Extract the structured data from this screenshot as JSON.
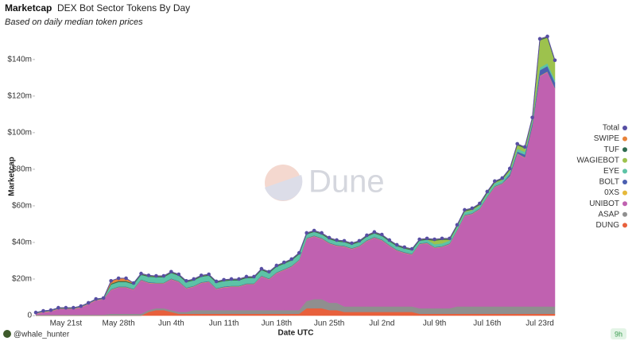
{
  "header": {
    "title": "Marketcap",
    "subtitle": "DEX Bot Sector Tokens By Day",
    "note": "Based on daily median token prices"
  },
  "watermark": "Dune",
  "footer": {
    "user": "@whale_hunter",
    "age": "9h"
  },
  "chart_data": {
    "type": "stacked-area",
    "x_label": "Date UTC",
    "y_label": "Marketcap",
    "categories": [
      null,
      null,
      null,
      null,
      "May 21st",
      null,
      null,
      null,
      null,
      null,
      null,
      "May 28th",
      null,
      null,
      null,
      null,
      null,
      null,
      "Jun 4th",
      null,
      null,
      null,
      null,
      null,
      null,
      "Jun 11th",
      null,
      null,
      null,
      null,
      null,
      null,
      "Jun 18th",
      null,
      null,
      null,
      null,
      null,
      null,
      "Jun 25th",
      null,
      null,
      null,
      null,
      null,
      null,
      "Jul 2nd",
      null,
      null,
      null,
      null,
      null,
      null,
      "Jul 9th",
      null,
      null,
      null,
      null,
      null,
      null,
      "Jul 16th",
      null,
      null,
      null,
      null,
      null,
      null,
      "Jul 23rd",
      null,
      null
    ],
    "ylim": [
      0,
      156
    ],
    "yticks": [
      0,
      {
        "value": 20,
        "label": "$20m"
      },
      {
        "value": 40,
        "label": "$40m"
      },
      {
        "value": 60,
        "label": "$60m"
      },
      {
        "value": 80,
        "label": "$80m"
      },
      {
        "value": 100,
        "label": "$100m"
      },
      {
        "value": 120,
        "label": "$120m"
      },
      {
        "value": 140,
        "label": "$140m"
      }
    ],
    "legend": "right",
    "series": [
      {
        "name": "Total",
        "color": "#574ea3",
        "kind": "line",
        "values": [
          1.7,
          2.6,
          3,
          4.3,
          4.3,
          4.3,
          5.2,
          7,
          9.1,
          9.6,
          19,
          20.4,
          20.4,
          17.8,
          23,
          22,
          21.7,
          21.7,
          24,
          22.6,
          19,
          20,
          22,
          22.6,
          18.7,
          19.6,
          20,
          20,
          21.3,
          21.3,
          25.6,
          24,
          27.4,
          29.1,
          30.9,
          34.3,
          45.2,
          46.5,
          45.2,
          42.6,
          41.3,
          40.9,
          39.6,
          40.9,
          43.9,
          45.7,
          44.3,
          41.3,
          38.7,
          37.4,
          36.5,
          41.7,
          42.2,
          41.7,
          42.2,
          42.2,
          49.6,
          57.8,
          58.7,
          61.3,
          67.8,
          73.5,
          75.2,
          80.4,
          93.9,
          92.2,
          108.3,
          151.3,
          152.6,
          139.6
        ]
      },
      {
        "name": "SWIPE",
        "color": "#e8833a",
        "values": [
          0,
          0,
          0,
          0,
          0,
          0,
          0,
          0,
          0,
          0,
          1.5,
          1.5,
          1.5,
          0.2,
          0.2,
          0.2,
          0.2,
          0.2,
          0.2,
          0.2,
          0.2,
          0.2,
          0.2,
          0.2,
          0.2,
          0.2,
          0.2,
          0.2,
          0.2,
          0.2,
          0.2,
          0.2,
          0.2,
          0.2,
          0.2,
          0.2,
          0.2,
          0.2,
          0.2,
          0.2,
          0.2,
          0.2,
          0.2,
          0.2,
          0.2,
          0.2,
          0.2,
          0.2,
          0.2,
          0.2,
          0.2,
          0.2,
          0.2,
          0.2,
          0.2,
          0.2,
          0.2,
          0.2,
          0.2,
          0.2,
          0.2,
          0.2,
          0.2,
          0.2,
          0.2,
          0.2,
          0.2,
          0.2,
          0.2,
          0.2
        ]
      },
      {
        "name": "TUF",
        "color": "#2e6b4f",
        "values": [
          0.2,
          0.2,
          0.2,
          0.2,
          0.2,
          0.2,
          0.2,
          0.2,
          0.2,
          0.2,
          0.5,
          0.5,
          0.5,
          0.5,
          0.5,
          0.5,
          0.5,
          0.5,
          0.5,
          0.5,
          0.5,
          0.5,
          0.5,
          0.5,
          0.5,
          0.5,
          0.5,
          0.5,
          0.5,
          0.5,
          0.5,
          0.5,
          0.5,
          0.5,
          0.5,
          0.5,
          0.5,
          0.5,
          0.5,
          0.5,
          0.5,
          0.5,
          0.5,
          0.5,
          0.5,
          0.5,
          0.5,
          0.5,
          0.5,
          0.5,
          0.5,
          0.5,
          0.5,
          0.5,
          0.5,
          0.5,
          0.5,
          0.5,
          0.5,
          0.5,
          0.5,
          0.5,
          0.5,
          0.5,
          0.5,
          0.5,
          0.5,
          0.5,
          0.5,
          0.5
        ]
      },
      {
        "name": "WAGIEBOT",
        "color": "#9dc24d",
        "values": [
          0,
          0,
          0,
          0,
          0,
          0,
          0,
          0,
          0,
          0,
          0,
          0,
          0,
          0,
          0,
          0,
          0,
          0,
          0,
          0,
          0,
          0,
          0,
          0,
          0,
          0,
          0,
          0,
          0,
          0,
          0,
          0,
          0,
          0,
          0,
          0,
          0,
          0,
          0,
          0,
          0,
          0,
          0,
          0,
          0,
          0,
          0,
          0,
          0,
          0,
          0,
          0,
          0,
          2,
          2,
          0.5,
          0.5,
          0.5,
          0.5,
          0.5,
          0.5,
          0.5,
          0.5,
          1,
          2,
          2,
          1,
          15,
          14,
          10
        ]
      },
      {
        "name": "EYE",
        "color": "#5cc3a6",
        "values": [
          0,
          0,
          0,
          0,
          0,
          0,
          0,
          0,
          0,
          0,
          2.5,
          2.5,
          2.5,
          2.5,
          2.5,
          3,
          3,
          3,
          3,
          3,
          3,
          3,
          3,
          3,
          3,
          3,
          3,
          3,
          3,
          3,
          3,
          3,
          3,
          3,
          3,
          3,
          2,
          2,
          2,
          2,
          2,
          2,
          2,
          2,
          2,
          2,
          2,
          2,
          2,
          2,
          2,
          1.5,
          1.5,
          1.5,
          1.5,
          1.5,
          1.5,
          1.5,
          1.5,
          1.5,
          1.5,
          1.5,
          1.5,
          1.5,
          1.5,
          1.5,
          1.5,
          1.5,
          1.5,
          1.5
        ]
      },
      {
        "name": "BOLT",
        "color": "#4b5fb0",
        "values": [
          0.3,
          0.3,
          0.3,
          0.3,
          0.3,
          0.3,
          0.3,
          0.3,
          0.3,
          0.3,
          0.3,
          0.3,
          0.3,
          0.3,
          0.3,
          0.3,
          0.3,
          0.3,
          0.3,
          0.3,
          0.3,
          0.3,
          0.3,
          0.3,
          0.3,
          0.3,
          0.3,
          0.3,
          0.3,
          0.3,
          0.3,
          0.3,
          0.3,
          0.3,
          0.3,
          0.3,
          0.3,
          0.3,
          0.3,
          0.3,
          0.3,
          0.3,
          0.3,
          0.3,
          0.3,
          0.3,
          0.3,
          0.3,
          0.3,
          0.3,
          0.3,
          0.3,
          0.3,
          0.3,
          0.3,
          0.3,
          0.3,
          0.3,
          0.3,
          0.3,
          0.3,
          0.3,
          0.3,
          1,
          1,
          1.5,
          1.5,
          3,
          3,
          3
        ]
      },
      {
        "name": "0XS",
        "color": "#e6b93a",
        "values": [
          0.2,
          0.2,
          0.2,
          0.2,
          0.2,
          0.2,
          0.2,
          0.2,
          0.2,
          0.2,
          0.2,
          0.2,
          0.2,
          0.2,
          0.2,
          0.2,
          0.2,
          0.2,
          0.2,
          0.2,
          0.2,
          0.2,
          0.2,
          0.2,
          0.2,
          0.2,
          0.2,
          0.2,
          0.2,
          0.2,
          0.2,
          0.2,
          0.2,
          0.2,
          0.2,
          0.2,
          0.2,
          0.2,
          0.2,
          0.2,
          0.2,
          0.2,
          0.2,
          0.2,
          0.2,
          0.2,
          0.2,
          0.2,
          0.2,
          0.2,
          0.2,
          0.2,
          0.2,
          0.2,
          0.2,
          0.2,
          0.2,
          0.2,
          0.2,
          0.2,
          0.2,
          0.2,
          0.2,
          0.2,
          0.2,
          0.2,
          0.2,
          0.2,
          0.2,
          0.2
        ]
      },
      {
        "name": "UNIBOT",
        "color": "#c061b0",
        "values": [
          0.5,
          1.4,
          1.8,
          3.1,
          3.1,
          3.1,
          4.0,
          5.8,
          7.9,
          8.4,
          13.0,
          14.4,
          14.4,
          13.1,
          18.3,
          14.8,
          13.5,
          13.5,
          16.8,
          16.4,
          12.8,
          12.8,
          14.8,
          15.4,
          11.5,
          12.4,
          12.8,
          12.8,
          14.1,
          14.1,
          18.4,
          16.8,
          20.2,
          21.9,
          23.7,
          27.1,
          34.0,
          34.3,
          33.0,
          32.4,
          31.1,
          32.7,
          31.4,
          32.7,
          35.7,
          37.5,
          36.1,
          33.1,
          30.5,
          29.2,
          28.3,
          35.0,
          35.5,
          33.0,
          33.5,
          35.0,
          41.4,
          49.6,
          50.5,
          53.1,
          59.6,
          65.3,
          67.0,
          71.0,
          83.5,
          81.3,
          98.4,
          125.9,
          128.2,
          119.2
        ]
      },
      {
        "name": "ASAP",
        "color": "#8f8f8f",
        "values": [
          0.5,
          0.5,
          0.5,
          0.5,
          0.5,
          0.5,
          0.5,
          0.5,
          0.5,
          0.5,
          1,
          1,
          1,
          1,
          1,
          1,
          1,
          1,
          1,
          1,
          1,
          2,
          2,
          2,
          2,
          2,
          2,
          2,
          2,
          2,
          2,
          2,
          2,
          2,
          2,
          2,
          4,
          5,
          5,
          4,
          4,
          3,
          3,
          3,
          3,
          3,
          3,
          3,
          3,
          3,
          3,
          3,
          3,
          3,
          3,
          3,
          4,
          4,
          4,
          4,
          4,
          4,
          4,
          4,
          4,
          4,
          4,
          4,
          4,
          4
        ]
      },
      {
        "name": "DUNG",
        "color": "#e8603c",
        "values": [
          0,
          0,
          0,
          0,
          0,
          0,
          0,
          0,
          0,
          0,
          0,
          0,
          0,
          0,
          0,
          2,
          3,
          3,
          2,
          1,
          1,
          1,
          1,
          1,
          1,
          1,
          1,
          1,
          1,
          1,
          1,
          1,
          1,
          1,
          1,
          1,
          4,
          4,
          4,
          3,
          3,
          2,
          2,
          2,
          2,
          2,
          2,
          2,
          2,
          2,
          2,
          1,
          1,
          1,
          1,
          1,
          1,
          1,
          1,
          1,
          1,
          1,
          1,
          1,
          1,
          1,
          1,
          1,
          1,
          1
        ]
      }
    ]
  }
}
